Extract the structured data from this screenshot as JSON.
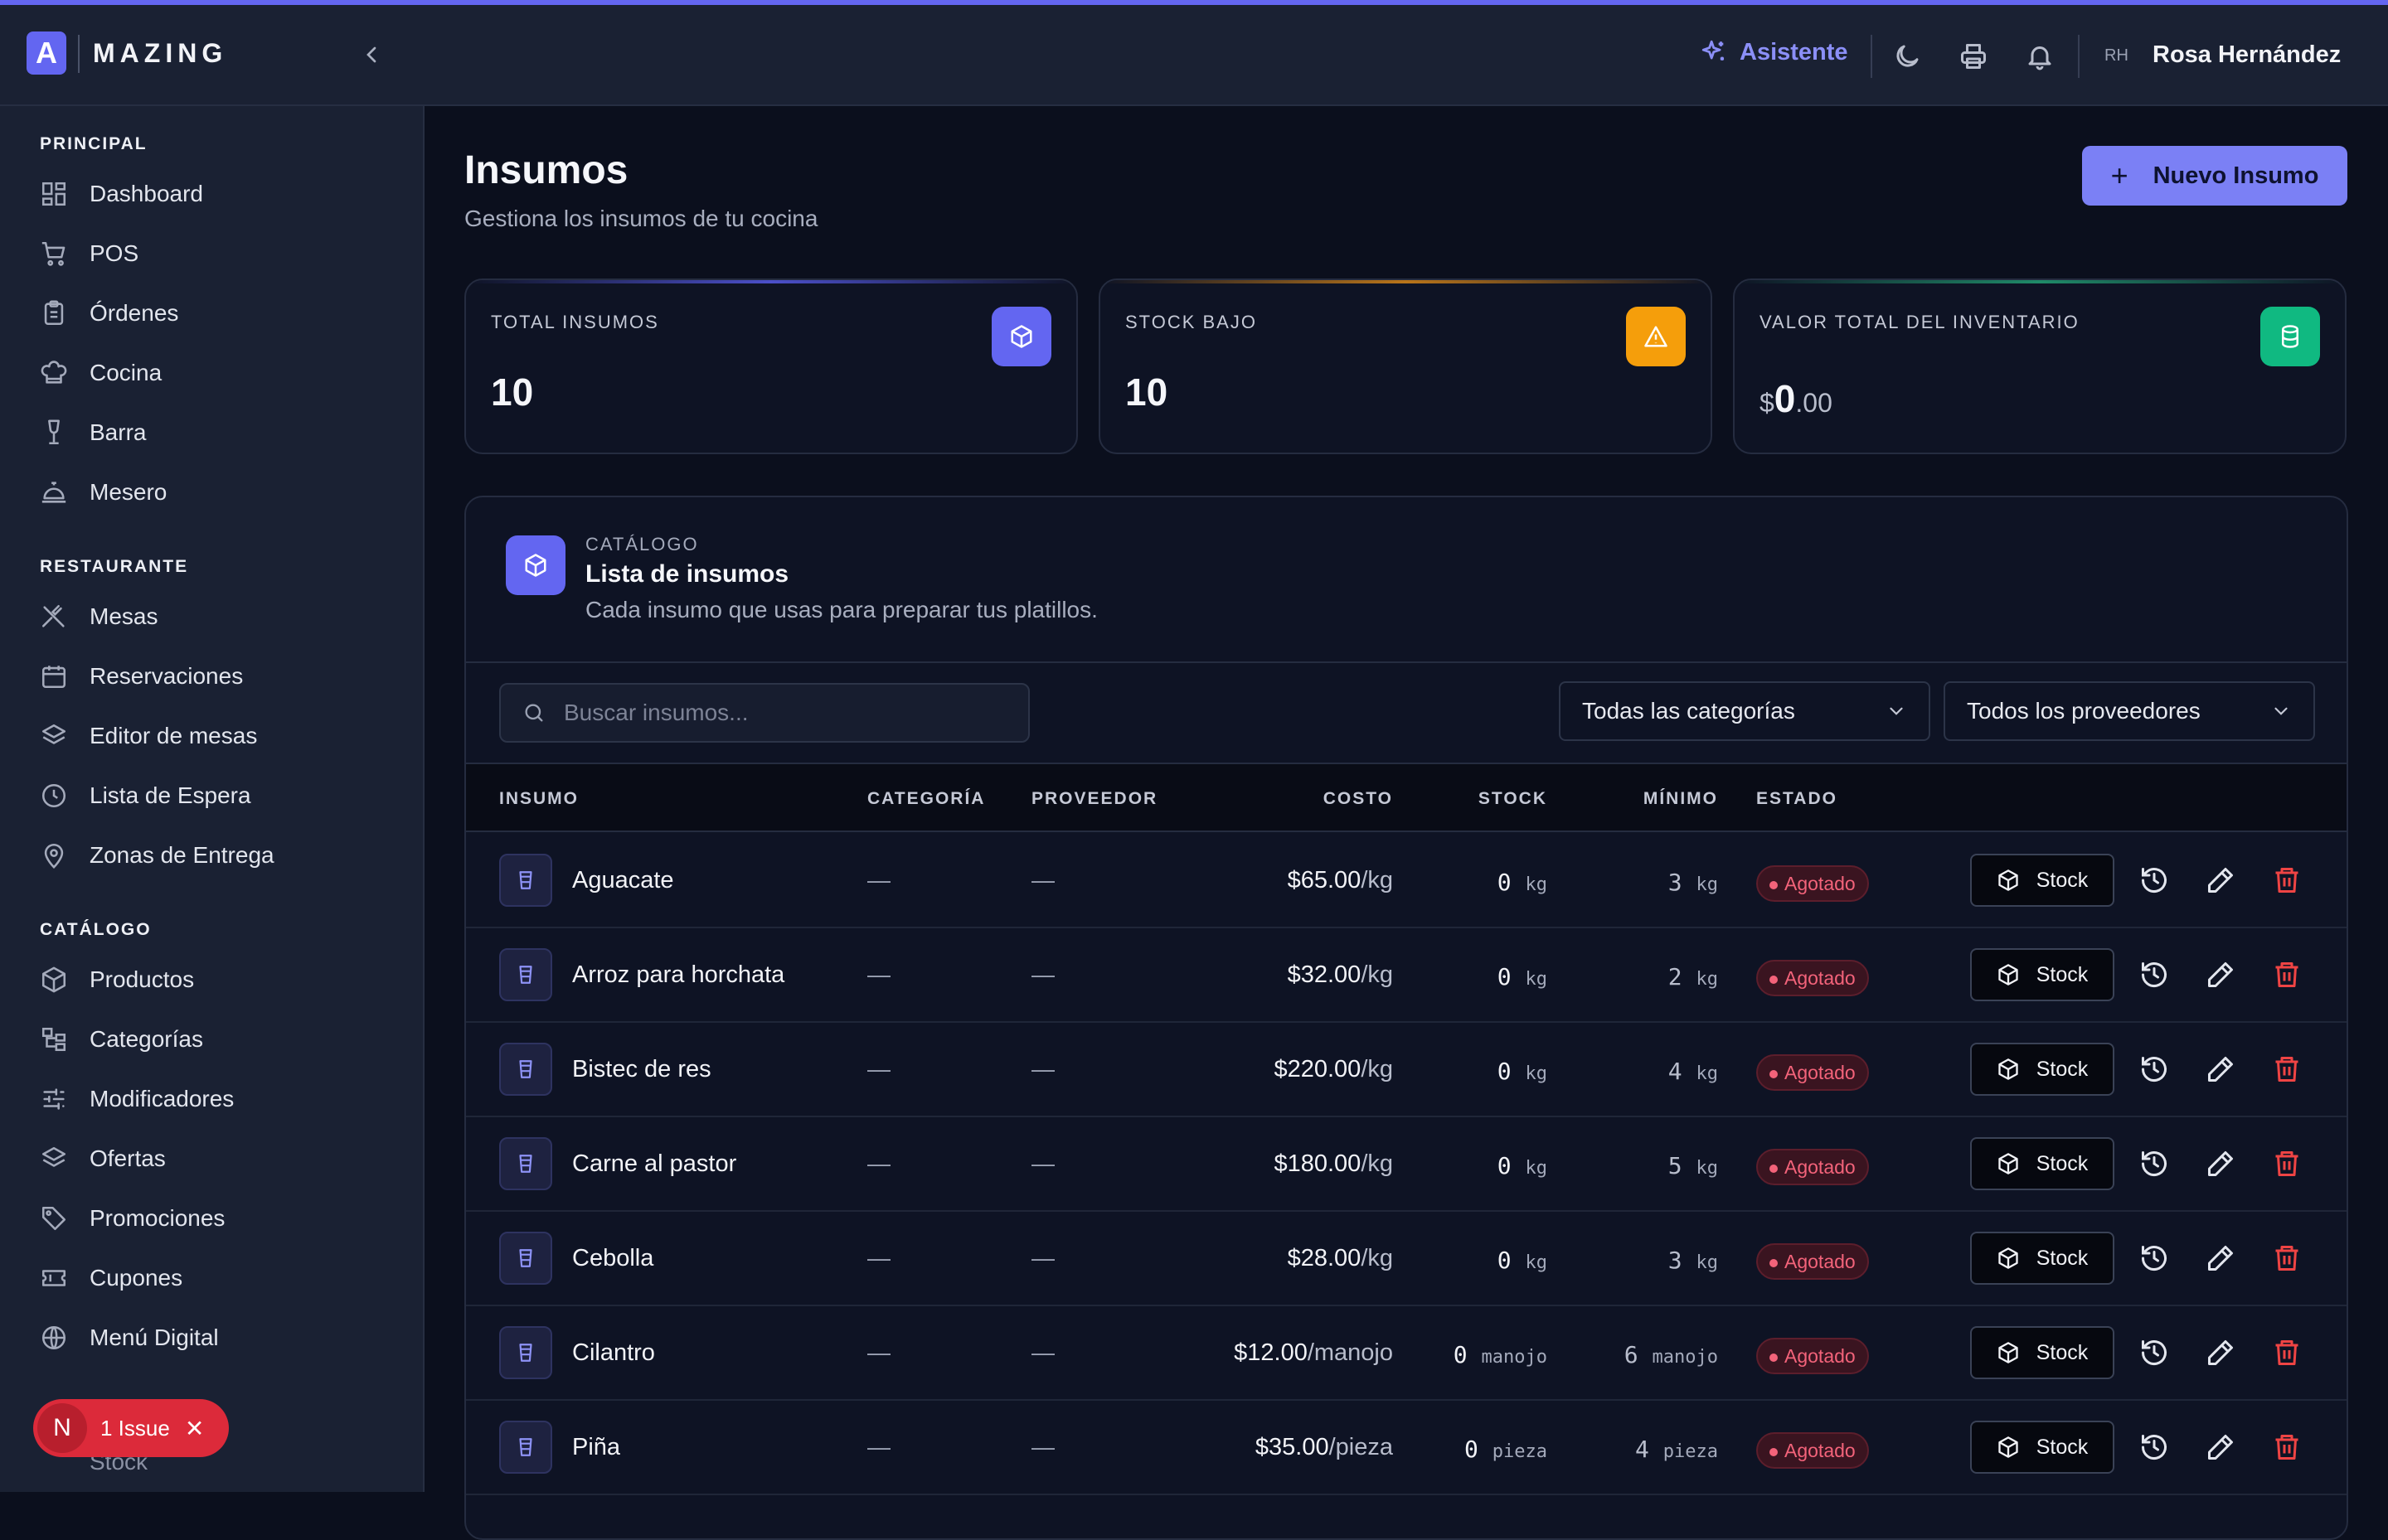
{
  "header": {
    "brand_letter": "A",
    "brand_name": "MAZING",
    "assistant_label": "Asistente",
    "user_initials": "RH",
    "user_name": "Rosa Hernández"
  },
  "sidebar": {
    "sections": [
      {
        "title": "PRINCIPAL",
        "items": [
          "Dashboard",
          "POS",
          "Órdenes",
          "Cocina",
          "Barra",
          "Mesero"
        ]
      },
      {
        "title": "RESTAURANTE",
        "items": [
          "Mesas",
          "Reservaciones",
          "Editor de mesas",
          "Lista de Espera",
          "Zonas de Entrega"
        ]
      },
      {
        "title": "CATÁLOGO",
        "items": [
          "Productos",
          "Categorías",
          "Modificadores",
          "Ofertas",
          "Promociones",
          "Cupones",
          "Menú Digital"
        ]
      }
    ],
    "partial_item": "Stock",
    "issue_badge": {
      "letter": "N",
      "label": "1 Issue",
      "close": "✕"
    }
  },
  "page": {
    "title": "Insumos",
    "subtitle": "Gestiona los insumos de tu cocina",
    "new_button": "Nuevo Insumo",
    "new_button_icon": "+"
  },
  "stats": [
    {
      "label": "TOTAL INSUMOS",
      "value": "10",
      "icon": "cube-icon",
      "color": "#6366f1"
    },
    {
      "label": "STOCK BAJO",
      "value": "10",
      "icon": "warning-icon",
      "color": "#f59e0b"
    },
    {
      "label": "VALOR TOTAL DEL INVENTARIO",
      "currency": "$",
      "int": "0",
      "dec": ".00",
      "icon": "database-icon",
      "color": "#10b981"
    }
  ],
  "catalog": {
    "kicker": "CATÁLOGO",
    "title": "Lista de insumos",
    "description": "Cada insumo que usas para preparar tus platillos.",
    "search_placeholder": "Buscar insumos...",
    "category_filter": "Todas las categorías",
    "supplier_filter": "Todos los proveedores",
    "columns": [
      "INSUMO",
      "CATEGORÍA",
      "PROVEEDOR",
      "COSTO",
      "STOCK",
      "MÍNIMO",
      "ESTADO"
    ],
    "stock_button": "Stock",
    "rows": [
      {
        "name": "Aguacate",
        "category": "—",
        "supplier": "—",
        "cost": "$65.00",
        "cost_unit": "/kg",
        "stock": "0",
        "stock_unit": "kg",
        "min": "3",
        "min_unit": "kg",
        "status": "Agotado"
      },
      {
        "name": "Arroz para horchata",
        "category": "—",
        "supplier": "—",
        "cost": "$32.00",
        "cost_unit": "/kg",
        "stock": "0",
        "stock_unit": "kg",
        "min": "2",
        "min_unit": "kg",
        "status": "Agotado"
      },
      {
        "name": "Bistec de res",
        "category": "—",
        "supplier": "—",
        "cost": "$220.00",
        "cost_unit": "/kg",
        "stock": "0",
        "stock_unit": "kg",
        "min": "4",
        "min_unit": "kg",
        "status": "Agotado"
      },
      {
        "name": "Carne al pastor",
        "category": "—",
        "supplier": "—",
        "cost": "$180.00",
        "cost_unit": "/kg",
        "stock": "0",
        "stock_unit": "kg",
        "min": "5",
        "min_unit": "kg",
        "status": "Agotado"
      },
      {
        "name": "Cebolla",
        "category": "—",
        "supplier": "—",
        "cost": "$28.00",
        "cost_unit": "/kg",
        "stock": "0",
        "stock_unit": "kg",
        "min": "3",
        "min_unit": "kg",
        "status": "Agotado"
      },
      {
        "name": "Cilantro",
        "category": "—",
        "supplier": "—",
        "cost": "$12.00",
        "cost_unit": "/manojo",
        "stock": "0",
        "stock_unit": "manojo",
        "min": "6",
        "min_unit": "manojo",
        "status": "Agotado"
      },
      {
        "name": "Piña",
        "category": "—",
        "supplier": "—",
        "cost": "$35.00",
        "cost_unit": "/pieza",
        "stock": "0",
        "stock_unit": "pieza",
        "min": "4",
        "min_unit": "pieza",
        "status": "Agotado"
      }
    ]
  },
  "colors": {
    "accent": "#6366f1",
    "danger": "#ef4444",
    "background": "#0b0f1d",
    "sidebar": "#1a2133"
  }
}
